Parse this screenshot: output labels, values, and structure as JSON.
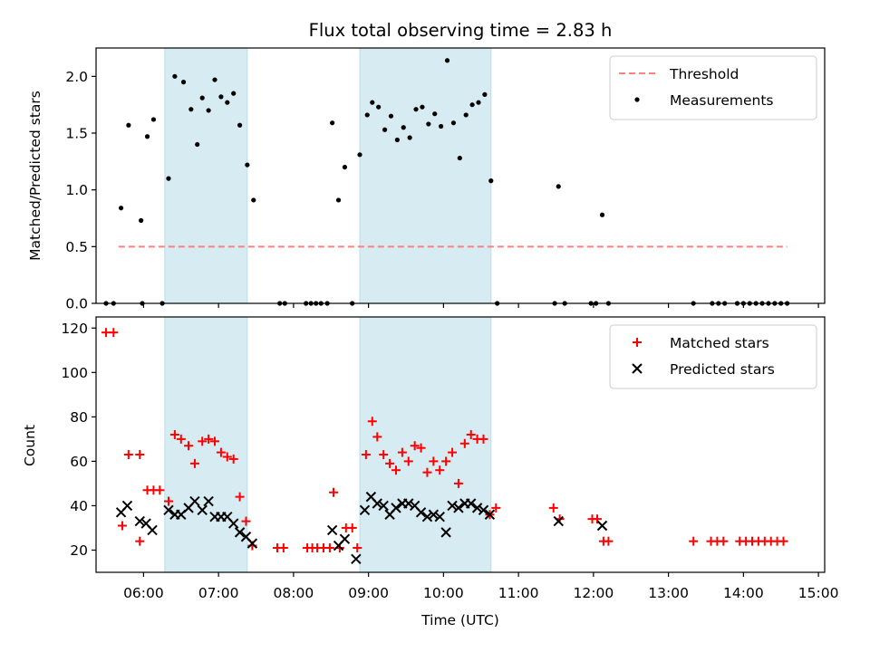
{
  "chart_data": [
    {
      "type": "scatter",
      "title": "Flux total observing time = 2.83 h",
      "xlabel": "",
      "ylabel": "Matched/Predicted stars",
      "xlim": [
        "05:22",
        "15:05"
      ],
      "ylim": [
        0,
        2.25
      ],
      "yticks": [
        "0.0",
        "0.5",
        "1.0",
        "1.5",
        "2.0"
      ],
      "legend_position": "top-right",
      "shaded_intervals": [
        [
          "06:17",
          "07:23"
        ],
        [
          "08:53",
          "10:38"
        ]
      ],
      "threshold": {
        "name": "Threshold",
        "value": 0.5,
        "x_start": "05:40",
        "x_end": "14:35",
        "color": "#ff8080",
        "style": "dashed"
      },
      "series": [
        {
          "name": "Measurements",
          "color": "#000000",
          "points": [
            [
              "05:30",
              0
            ],
            [
              "05:36",
              0
            ],
            [
              "05:42",
              0.84
            ],
            [
              "05:48",
              1.57
            ],
            [
              "05:58",
              0.73
            ],
            [
              "05:59",
              0
            ],
            [
              "06:03",
              1.47
            ],
            [
              "06:08",
              1.62
            ],
            [
              "06:15",
              0
            ],
            [
              "06:20",
              1.1
            ],
            [
              "06:25",
              2.0
            ],
            [
              "06:32",
              1.95
            ],
            [
              "06:38",
              1.71
            ],
            [
              "06:43",
              1.4
            ],
            [
              "06:47",
              1.81
            ],
            [
              "06:52",
              1.7
            ],
            [
              "06:57",
              1.97
            ],
            [
              "07:02",
              1.82
            ],
            [
              "07:07",
              1.77
            ],
            [
              "07:12",
              1.85
            ],
            [
              "07:17",
              1.57
            ],
            [
              "07:23",
              1.22
            ],
            [
              "07:28",
              0.91
            ],
            [
              "07:49",
              0
            ],
            [
              "07:53",
              0
            ],
            [
              "08:10",
              0
            ],
            [
              "08:14",
              0
            ],
            [
              "08:18",
              0
            ],
            [
              "08:22",
              0
            ],
            [
              "08:27",
              0
            ],
            [
              "08:31",
              1.59
            ],
            [
              "08:36",
              0.91
            ],
            [
              "08:41",
              1.2
            ],
            [
              "08:47",
              0
            ],
            [
              "08:53",
              1.31
            ],
            [
              "08:59",
              1.66
            ],
            [
              "09:03",
              1.77
            ],
            [
              "09:08",
              1.73
            ],
            [
              "09:13",
              1.53
            ],
            [
              "09:18",
              1.65
            ],
            [
              "09:23",
              1.44
            ],
            [
              "09:28",
              1.55
            ],
            [
              "09:33",
              1.46
            ],
            [
              "09:38",
              1.71
            ],
            [
              "09:43",
              1.73
            ],
            [
              "09:48",
              1.58
            ],
            [
              "09:53",
              1.67
            ],
            [
              "09:58",
              1.56
            ],
            [
              "10:03",
              2.14
            ],
            [
              "10:08",
              1.59
            ],
            [
              "10:13",
              1.28
            ],
            [
              "10:18",
              1.66
            ],
            [
              "10:23",
              1.75
            ],
            [
              "10:28",
              1.77
            ],
            [
              "10:33",
              1.84
            ],
            [
              "10:38",
              1.08
            ],
            [
              "10:43",
              0
            ],
            [
              "11:29",
              0
            ],
            [
              "11:32",
              1.03
            ],
            [
              "11:37",
              0
            ],
            [
              "11:58",
              0
            ],
            [
              "12:02",
              0
            ],
            [
              "12:07",
              0.78
            ],
            [
              "12:12",
              0
            ],
            [
              "13:20",
              0
            ],
            [
              "13:35",
              0
            ],
            [
              "13:40",
              0
            ],
            [
              "13:45",
              0
            ],
            [
              "13:55",
              0
            ],
            [
              "14:00",
              0
            ],
            [
              "14:05",
              0
            ],
            [
              "14:10",
              0
            ],
            [
              "14:15",
              0
            ],
            [
              "14:20",
              0
            ],
            [
              "14:25",
              0
            ],
            [
              "14:30",
              0
            ],
            [
              "14:35",
              0
            ]
          ]
        }
      ]
    },
    {
      "type": "scatter",
      "title": "",
      "xlabel": "Time (UTC)",
      "ylabel": "Count",
      "xlim": [
        "05:22",
        "15:05"
      ],
      "ylim": [
        10,
        125
      ],
      "xticks": [
        "06:00",
        "07:00",
        "08:00",
        "09:00",
        "10:00",
        "11:00",
        "12:00",
        "13:00",
        "14:00",
        "15:00"
      ],
      "yticks": [
        "20",
        "40",
        "60",
        "80",
        "100",
        "120"
      ],
      "legend_position": "top-right",
      "shaded_intervals": [
        [
          "06:17",
          "07:23"
        ],
        [
          "08:53",
          "10:38"
        ]
      ],
      "series": [
        {
          "name": "Matched stars",
          "color": "#ff0000",
          "marker": "+",
          "points": [
            [
              "05:30",
              118
            ],
            [
              "05:36",
              118
            ],
            [
              "05:43",
              31
            ],
            [
              "05:48",
              63
            ],
            [
              "05:57",
              63
            ],
            [
              "05:57",
              24
            ],
            [
              "06:03",
              47
            ],
            [
              "06:08",
              47
            ],
            [
              "06:13",
              47
            ],
            [
              "06:20",
              42
            ],
            [
              "06:25",
              72
            ],
            [
              "06:30",
              70
            ],
            [
              "06:36",
              67
            ],
            [
              "06:41",
              59
            ],
            [
              "06:47",
              69
            ],
            [
              "06:52",
              70
            ],
            [
              "06:57",
              69
            ],
            [
              "07:02",
              64
            ],
            [
              "07:07",
              62
            ],
            [
              "07:12",
              61
            ],
            [
              "07:17",
              44
            ],
            [
              "07:22",
              33
            ],
            [
              "07:27",
              22
            ],
            [
              "07:47",
              21
            ],
            [
              "07:52",
              21
            ],
            [
              "08:11",
              21
            ],
            [
              "08:15",
              21
            ],
            [
              "08:19",
              21
            ],
            [
              "08:24",
              21
            ],
            [
              "08:29",
              21
            ],
            [
              "08:32",
              46
            ],
            [
              "08:37",
              21
            ],
            [
              "08:42",
              30
            ],
            [
              "08:47",
              30
            ],
            [
              "08:51",
              21
            ],
            [
              "08:58",
              63
            ],
            [
              "09:03",
              78
            ],
            [
              "09:07",
              71
            ],
            [
              "09:12",
              63
            ],
            [
              "09:17",
              59
            ],
            [
              "09:22",
              56
            ],
            [
              "09:27",
              64
            ],
            [
              "09:32",
              60
            ],
            [
              "09:37",
              67
            ],
            [
              "09:42",
              66
            ],
            [
              "09:47",
              55
            ],
            [
              "09:52",
              60
            ],
            [
              "09:57",
              56
            ],
            [
              "10:02",
              60
            ],
            [
              "10:07",
              64
            ],
            [
              "10:12",
              50
            ],
            [
              "10:17",
              68
            ],
            [
              "10:22",
              72
            ],
            [
              "10:27",
              70
            ],
            [
              "10:32",
              70
            ],
            [
              "10:37",
              36
            ],
            [
              "10:42",
              39
            ],
            [
              "11:28",
              39
            ],
            [
              "11:33",
              34
            ],
            [
              "11:59",
              34
            ],
            [
              "12:03",
              34
            ],
            [
              "12:08",
              24
            ],
            [
              "12:12",
              24
            ],
            [
              "13:20",
              24
            ],
            [
              "13:34",
              24
            ],
            [
              "13:39",
              24
            ],
            [
              "13:44",
              24
            ],
            [
              "13:57",
              24
            ],
            [
              "14:02",
              24
            ],
            [
              "14:07",
              24
            ],
            [
              "14:12",
              24
            ],
            [
              "14:17",
              24
            ],
            [
              "14:22",
              24
            ],
            [
              "14:27",
              24
            ],
            [
              "14:32",
              24
            ]
          ]
        },
        {
          "name": "Predicted stars",
          "color": "#000000",
          "marker": "x",
          "points": [
            [
              "05:42",
              37
            ],
            [
              "05:47",
              40
            ],
            [
              "05:57",
              33
            ],
            [
              "06:02",
              32
            ],
            [
              "06:07",
              29
            ],
            [
              "06:20",
              38
            ],
            [
              "06:25",
              36
            ],
            [
              "06:30",
              36
            ],
            [
              "06:36",
              39
            ],
            [
              "06:41",
              42
            ],
            [
              "06:47",
              38
            ],
            [
              "06:52",
              42
            ],
            [
              "06:57",
              35
            ],
            [
              "07:02",
              35
            ],
            [
              "07:07",
              35
            ],
            [
              "07:12",
              32
            ],
            [
              "07:17",
              28
            ],
            [
              "07:22",
              26
            ],
            [
              "07:27",
              23
            ],
            [
              "08:31",
              29
            ],
            [
              "08:36",
              22
            ],
            [
              "08:41",
              25
            ],
            [
              "08:50",
              16
            ],
            [
              "08:57",
              38
            ],
            [
              "09:02",
              44
            ],
            [
              "09:07",
              41
            ],
            [
              "09:12",
              40
            ],
            [
              "09:17",
              36
            ],
            [
              "09:22",
              39
            ],
            [
              "09:27",
              41
            ],
            [
              "09:32",
              41
            ],
            [
              "09:37",
              40
            ],
            [
              "09:42",
              37
            ],
            [
              "09:47",
              35
            ],
            [
              "09:52",
              36
            ],
            [
              "09:57",
              35
            ],
            [
              "10:02",
              28
            ],
            [
              "10:07",
              40
            ],
            [
              "10:12",
              39
            ],
            [
              "10:17",
              41
            ],
            [
              "10:22",
              41
            ],
            [
              "10:27",
              39
            ],
            [
              "10:32",
              38
            ],
            [
              "10:37",
              36
            ],
            [
              "11:32",
              33
            ],
            [
              "12:07",
              31
            ]
          ]
        }
      ]
    }
  ]
}
